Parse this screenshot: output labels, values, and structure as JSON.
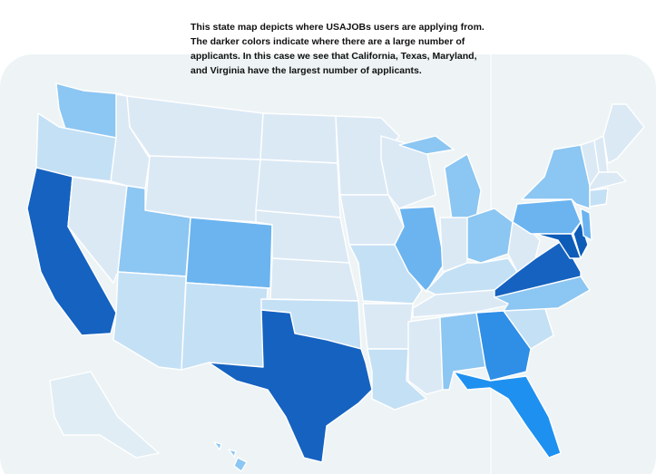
{
  "caption": {
    "lines": [
      "This state map depicts where USAJOBs users are applying from.",
      "The darker colors indicate where there are a large number of",
      "applicants. In this case we see that California, Texas, Maryland,",
      "and Virginia have the largest number of applicants."
    ]
  }
}
